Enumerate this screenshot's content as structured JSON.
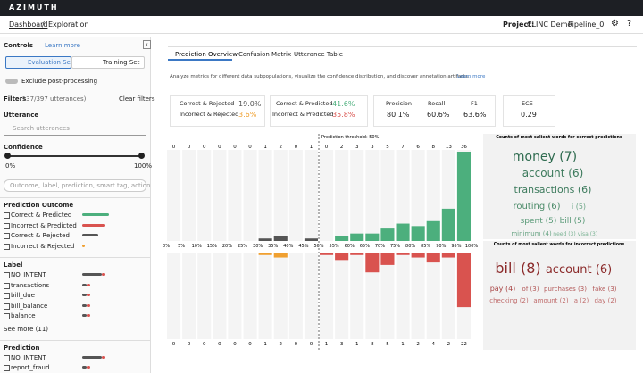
{
  "header": {
    "logo": "AZIMUTH"
  },
  "breadcrumb": {
    "items": [
      "Dashboard",
      "Exploration"
    ],
    "separator": "/",
    "project_label": "Project:",
    "project": "CLINC Demo",
    "pipeline": "Pipeline_0"
  },
  "sidebar": {
    "controls": "Controls",
    "learn_more": "Learn more",
    "tabs": [
      "Evaluation Set",
      "Training Set"
    ],
    "toggle": "Exclude post-processing",
    "filters": "Filters",
    "filter_count": "(137/397 utterances)",
    "clear": "Clear filters",
    "utterance": "Utterance",
    "search_placeholder": "Search utterances",
    "confidence": "Confidence",
    "slider_min": "0%",
    "slider_max": "100%",
    "filter_search": "Outcome, label, prediction, smart tag, action",
    "groups": [
      {
        "title": "Prediction Outcome",
        "items": [
          "Correct & Predicted",
          "Incorrect & Predicted",
          "Correct & Rejected",
          "Incorrect & Rejected"
        ]
      },
      {
        "title": "Label",
        "items": [
          "NO_INTENT",
          "transactions",
          "bill_due",
          "bill_balance",
          "balance"
        ],
        "more": "See more (11)"
      },
      {
        "title": "Prediction",
        "items": [
          "NO_INTENT",
          "report_fraud"
        ]
      }
    ]
  },
  "main": {
    "tabs": [
      "Prediction Overview",
      "Confusion Matrix",
      "Utterance Table"
    ],
    "description": "Analyze metrics for different data subpopulations, visualize the confidence distribution, and discover annotation artifacts.",
    "learn_more": "Learn more",
    "metrics": [
      {
        "label": "Correct & Rejected",
        "value": "19.0%"
      },
      {
        "label": "Incorrect & Rejected",
        "value": "3.6%"
      },
      {
        "label": "Correct & Predicted",
        "value": "41.6%"
      },
      {
        "label": "Incorrect & Predicted",
        "value": "35.8%"
      },
      {
        "label": "Precision",
        "value": "80.1%"
      },
      {
        "label": "Recall",
        "value": "60.6%"
      },
      {
        "label": "F1",
        "value": "63.6%"
      },
      {
        "label": "ECE",
        "value": "0.29"
      }
    ],
    "histogram": {
      "threshold_label": "Prediction threshold: 50%",
      "bin_labels": [
        "0%",
        "5%",
        "10%",
        "15%",
        "20%",
        "25%",
        "30%",
        "35%",
        "40%",
        "45%",
        "50%",
        "55%",
        "60%",
        "65%",
        "70%",
        "75%",
        "80%",
        "85%",
        "90%",
        "95%",
        "100%"
      ],
      "correct_counts": [
        0,
        0,
        0,
        0,
        0,
        0,
        1,
        2,
        0,
        1,
        0,
        2,
        3,
        3,
        5,
        7,
        6,
        8,
        13,
        36
      ],
      "incorrect_counts": [
        0,
        0,
        0,
        0,
        0,
        0,
        1,
        2,
        0,
        0,
        1,
        3,
        1,
        8,
        5,
        1,
        2,
        4,
        2,
        22
      ]
    },
    "correct_cloud": {
      "title": "Counts of most salient words for correct predictions",
      "words": [
        "money (7)",
        "account (6)",
        "transactions (6)",
        "routing (6)",
        "i (5)",
        "spent (5)",
        "bill (5)",
        "minimum (4)",
        "need (3)",
        "visa (3)"
      ]
    },
    "incorrect_cloud": {
      "title": "Counts of most salient words for incorrect predictions",
      "words": [
        "bill (8)",
        "account (6)",
        "pay (4)",
        "of (3)",
        "purchases (3)",
        "fake (3)",
        "checking (2)",
        "amount (2)",
        "a (2)",
        "day (2)"
      ]
    }
  }
}
